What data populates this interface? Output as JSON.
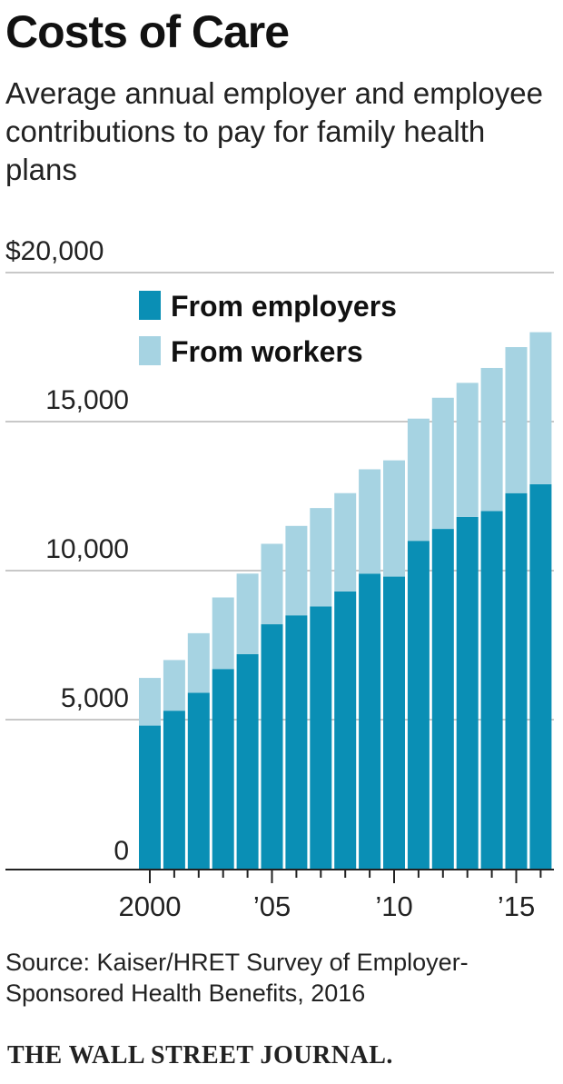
{
  "header": {
    "title": "Costs of Care",
    "subtitle": "Average annual employer and employee contributions to pay for family health plans"
  },
  "footer": {
    "source": "Source: Kaiser/HRET Survey of Employer-Sponsored Health Benefits, 2016",
    "brand": "THE WALL STREET JOURNAL."
  },
  "chart_data": {
    "type": "bar",
    "stacked": true,
    "x": [
      2000,
      2001,
      2002,
      2003,
      2004,
      2005,
      2006,
      2007,
      2008,
      2009,
      2010,
      2011,
      2012,
      2013,
      2014,
      2015,
      2016
    ],
    "xtick_labels": [
      "2000",
      "’05",
      "’10",
      "’15"
    ],
    "xtick_values": [
      2000,
      2005,
      2010,
      2015
    ],
    "ytick_labels": [
      "$20,000",
      "15,000",
      "10,000",
      "5,000",
      "0"
    ],
    "ytick_values": [
      20000,
      15000,
      10000,
      5000,
      0
    ],
    "ylim": [
      0,
      20000
    ],
    "grid": true,
    "legend_position": "top-left",
    "series": [
      {
        "name": "From employers",
        "color": "#0a8fb5",
        "values": [
          4800,
          5300,
          5900,
          6700,
          7200,
          8200,
          8500,
          8800,
          9300,
          9900,
          9800,
          11000,
          11400,
          11800,
          12000,
          12600,
          12900
        ]
      },
      {
        "name": "From workers",
        "color": "#a6d3e2",
        "values": [
          1600,
          1700,
          2000,
          2400,
          2700,
          2700,
          3000,
          3300,
          3300,
          3500,
          3900,
          4100,
          4400,
          4500,
          4800,
          4900,
          5100
        ]
      }
    ]
  }
}
